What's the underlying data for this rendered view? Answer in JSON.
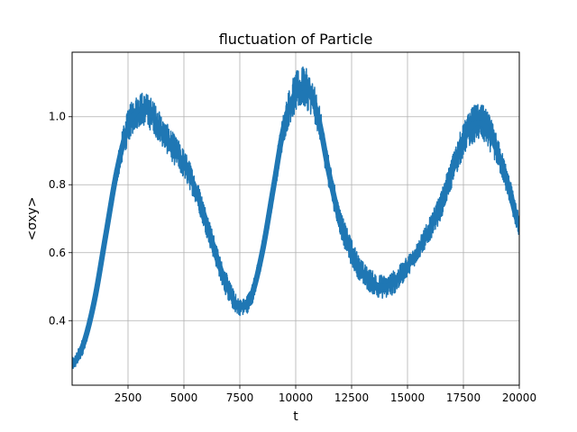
{
  "chart_data": {
    "type": "line",
    "title": "fluctuation of Particle",
    "xlabel": "t",
    "ylabel": "<σxy>",
    "xlim": [
      0,
      20000
    ],
    "ylim": [
      0.21,
      1.19
    ],
    "x_ticks": [
      2500,
      5000,
      7500,
      10000,
      12500,
      15000,
      17500,
      20000
    ],
    "x_tick_labels": [
      "2500",
      "5000",
      "7500",
      "10000",
      "12500",
      "15000",
      "17500",
      "20000"
    ],
    "y_ticks": [
      0.4,
      0.6,
      0.8,
      1.0
    ],
    "y_tick_labels": [
      "0.4",
      "0.6",
      "0.8",
      "1.0"
    ],
    "grid": true,
    "legend": "none",
    "color": "#1f77b4",
    "series": [
      {
        "x": [
          0,
          500,
          1000,
          1500,
          2000,
          2500,
          3000,
          3500,
          4000,
          4500,
          5000,
          5500,
          6000,
          6500,
          7000,
          7500,
          8000,
          8500,
          9000,
          9500,
          10000,
          10500,
          11000,
          11500,
          12000,
          12500,
          13000,
          13500,
          14000,
          14500,
          15000,
          15500,
          16000,
          16500,
          17000,
          17500,
          18000,
          18500,
          19000,
          19500,
          20000
        ],
        "y": [
          0.27,
          0.33,
          0.46,
          0.65,
          0.84,
          0.97,
          1.02,
          1.01,
          0.96,
          0.91,
          0.86,
          0.79,
          0.69,
          0.58,
          0.49,
          0.44,
          0.47,
          0.6,
          0.79,
          0.98,
          1.07,
          1.08,
          1.0,
          0.83,
          0.69,
          0.6,
          0.54,
          0.51,
          0.5,
          0.52,
          0.56,
          0.61,
          0.67,
          0.74,
          0.84,
          0.93,
          0.98,
          0.97,
          0.9,
          0.8,
          0.68
        ],
        "band": [
          0.02,
          0.025,
          0.025,
          0.03,
          0.04,
          0.05,
          0.05,
          0.05,
          0.045,
          0.045,
          0.045,
          0.04,
          0.04,
          0.035,
          0.035,
          0.025,
          0.03,
          0.035,
          0.04,
          0.05,
          0.06,
          0.06,
          0.05,
          0.045,
          0.04,
          0.04,
          0.035,
          0.035,
          0.035,
          0.035,
          0.03,
          0.03,
          0.035,
          0.04,
          0.045,
          0.05,
          0.055,
          0.055,
          0.045,
          0.04,
          0.035
        ]
      }
    ]
  }
}
